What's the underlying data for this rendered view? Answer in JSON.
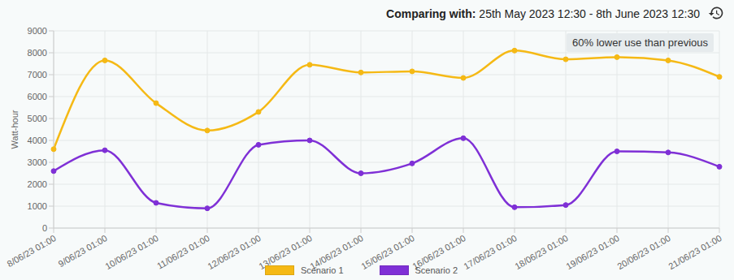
{
  "chart_data": {
    "type": "line",
    "title": "Comparing with:",
    "subtitle": "25th May 2023 12:30 - 8th June 2023 12:30",
    "annotations": [
      "60% lower use than previous"
    ],
    "y_label": "Watt-hour",
    "categories": [
      "8/06/23 01:00",
      "9/06/23 01:00",
      "10/06/23 01:00",
      "11/06/23 01:00",
      "12/06/23 01:00",
      "13/06/23 01:00",
      "14/06/23 01:00",
      "15/06/23 01:00",
      "16/06/23 01:00",
      "17/06/23 01:00",
      "18/06/23 01:00",
      "19/06/23 01:00",
      "20/06/23 01:00",
      "21/06/23 01:00"
    ],
    "series": [
      {
        "name": "Scenario 1",
        "color": "#f5b915",
        "values": [
          3600,
          7650,
          5700,
          4450,
          5300,
          7450,
          7100,
          7150,
          6850,
          8100,
          7700,
          7800,
          7650,
          6900
        ]
      },
      {
        "name": "Scenario 2",
        "color": "#7f30d6",
        "values": [
          2600,
          3550,
          1150,
          900,
          3800,
          4000,
          2500,
          2950,
          4100,
          950,
          1050,
          3500,
          3450,
          2800
        ]
      }
    ],
    "ylim": [
      0,
      9000
    ],
    "yticks": [
      0,
      1000,
      2000,
      3000,
      4000,
      5000,
      6000,
      7000,
      8000,
      9000
    ],
    "grid": true,
    "legend": "bottom",
    "marker": "circle"
  }
}
